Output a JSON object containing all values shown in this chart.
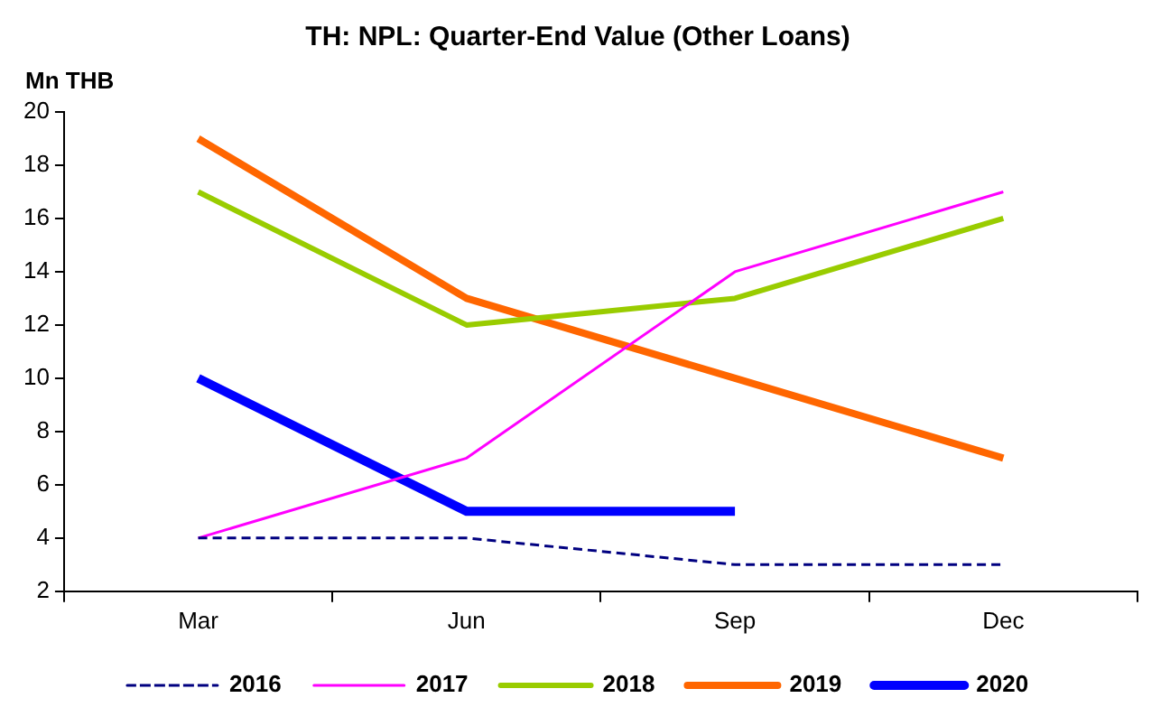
{
  "chart_data": {
    "type": "line",
    "title": "TH: NPL: Quarter-End Value (Other Loans)",
    "ylabel": "Mn THB",
    "categories": [
      "Mar",
      "Jun",
      "Sep",
      "Dec"
    ],
    "series": [
      {
        "name": "2016",
        "color": "#000080",
        "values": [
          4,
          4,
          3,
          3
        ],
        "line_style": "dashed"
      },
      {
        "name": "2017",
        "color": "#ff00ff",
        "values": [
          4,
          7,
          14,
          17
        ]
      },
      {
        "name": "2018",
        "color": "#99cc00",
        "values": [
          17,
          12,
          13,
          16
        ]
      },
      {
        "name": "2019",
        "color": "#ff6600",
        "values": [
          19,
          13,
          10,
          7
        ]
      },
      {
        "name": "2020",
        "color": "#0000ff",
        "values": [
          10,
          5,
          5,
          null
        ]
      }
    ],
    "ylim": [
      2,
      20
    ],
    "yticks": [
      2,
      4,
      6,
      8,
      10,
      12,
      14,
      16,
      18,
      20
    ],
    "grid": false,
    "legend": "bottom",
    "marker": "none",
    "line_style": "solid"
  }
}
